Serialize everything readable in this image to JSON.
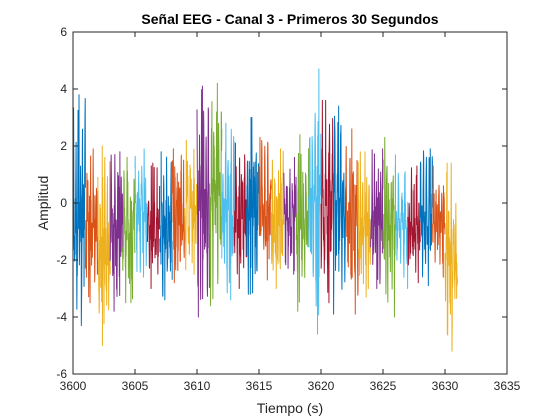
{
  "chart_data": {
    "type": "line",
    "title": "Señal EEG - Canal 3 - Primeros 30 Segundos",
    "xlabel": "Tiempo (s)",
    "ylabel": "Amplitud",
    "xlim": [
      3600,
      3635
    ],
    "ylim": [
      -6,
      6
    ],
    "xticks": [
      3600,
      3605,
      3610,
      3615,
      3620,
      3625,
      3630,
      3635
    ],
    "yticks": [
      -6,
      -4,
      -2,
      0,
      2,
      4,
      6
    ],
    "grid": false,
    "box": true,
    "segment_duration": 1,
    "samples_per_segment": 64,
    "colors": [
      "#0072BD",
      "#D95319",
      "#EDB120",
      "#7E2F8E",
      "#77AC30",
      "#4DBEEE",
      "#A2142F"
    ],
    "series_summary": [
      {
        "t_start": 3600,
        "min": -4.3,
        "max": 3.8
      },
      {
        "t_start": 3601,
        "min": -3.5,
        "max": 1.9
      },
      {
        "t_start": 3602,
        "min": -5.0,
        "max": 2.0
      },
      {
        "t_start": 3603,
        "min": -3.8,
        "max": 1.8
      },
      {
        "t_start": 3604,
        "min": -3.5,
        "max": 1.6
      },
      {
        "t_start": 3605,
        "min": -2.6,
        "max": 1.9
      },
      {
        "t_start": 3606,
        "min": -3.0,
        "max": 1.4
      },
      {
        "t_start": 3607,
        "min": -3.4,
        "max": 1.8
      },
      {
        "t_start": 3608,
        "min": -2.8,
        "max": 1.9
      },
      {
        "t_start": 3609,
        "min": -2.5,
        "max": 2.2
      },
      {
        "t_start": 3610,
        "min": -4.0,
        "max": 4.1
      },
      {
        "t_start": 3611,
        "min": -3.6,
        "max": 4.2
      },
      {
        "t_start": 3612,
        "min": -3.4,
        "max": 2.8
      },
      {
        "t_start": 3613,
        "min": -3.0,
        "max": 2.1
      },
      {
        "t_start": 3614,
        "min": -3.2,
        "max": 3.0
      },
      {
        "t_start": 3615,
        "min": -2.7,
        "max": 2.3
      },
      {
        "t_start": 3616,
        "min": -3.0,
        "max": 1.9
      },
      {
        "t_start": 3617,
        "min": -2.5,
        "max": 1.6
      },
      {
        "t_start": 3618,
        "min": -3.8,
        "max": 2.4
      },
      {
        "t_start": 3619,
        "min": -4.6,
        "max": 4.7
      },
      {
        "t_start": 3620,
        "min": -3.5,
        "max": 3.6
      },
      {
        "t_start": 3621,
        "min": -3.9,
        "max": 3.4
      },
      {
        "t_start": 3622,
        "min": -3.9,
        "max": 2.6
      },
      {
        "t_start": 3623,
        "min": -3.3,
        "max": 1.8
      },
      {
        "t_start": 3624,
        "min": -3.0,
        "max": 1.9
      },
      {
        "t_start": 3625,
        "min": -4.0,
        "max": 2.3
      },
      {
        "t_start": 3626,
        "min": -3.0,
        "max": 1.7
      },
      {
        "t_start": 3627,
        "min": -2.8,
        "max": 1.3
      },
      {
        "t_start": 3628,
        "min": -2.9,
        "max": 1.9
      },
      {
        "t_start": 3629,
        "min": -2.6,
        "max": 1.3
      },
      {
        "t_start": 3630,
        "min": -5.2,
        "max": 1.4
      }
    ]
  }
}
